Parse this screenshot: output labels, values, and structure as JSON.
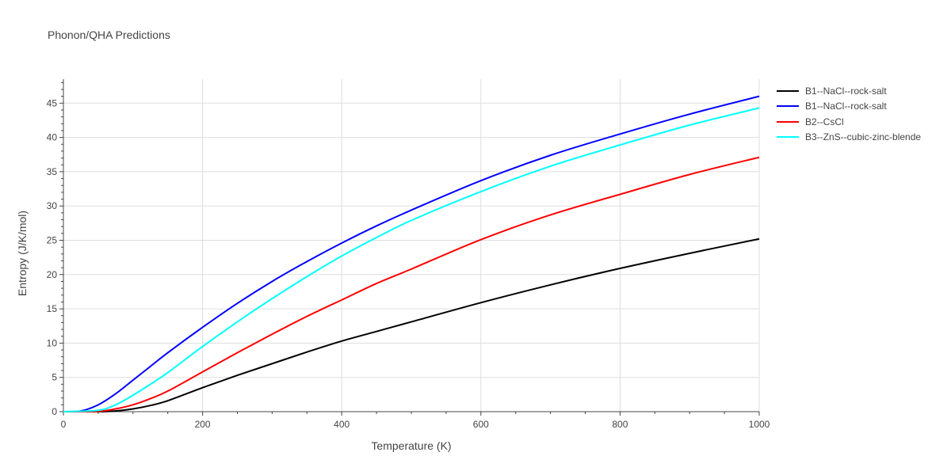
{
  "chart_data": {
    "type": "line",
    "title": "Phonon/QHA Predictions",
    "xlabel": "Temperature (K)",
    "ylabel": "Entropy (J/K/mol)",
    "xlim": [
      0,
      1000
    ],
    "ylim": [
      0,
      48.5
    ],
    "xticks": [
      0,
      200,
      400,
      600,
      800,
      1000
    ],
    "yticks": [
      0,
      5,
      10,
      15,
      20,
      25,
      30,
      35,
      40,
      45
    ],
    "grid": true,
    "legend_position": "right",
    "series": [
      {
        "name": "B1--NaCl--rock-salt",
        "color": "#000000",
        "x": [
          0,
          50,
          75,
          100,
          125,
          150,
          200,
          250,
          300,
          350,
          400,
          450,
          500,
          600,
          700,
          800,
          900,
          1000
        ],
        "y": [
          0,
          0.0,
          0.1,
          0.4,
          0.9,
          1.6,
          3.5,
          5.3,
          7.0,
          8.7,
          10.3,
          11.7,
          13.1,
          15.9,
          18.5,
          20.9,
          23.1,
          25.2
        ]
      },
      {
        "name": "B1--NaCl--rock-salt",
        "color": "#0000ff",
        "x": [
          0,
          25,
          50,
          75,
          100,
          125,
          150,
          200,
          250,
          300,
          350,
          400,
          450,
          500,
          600,
          700,
          800,
          900,
          1000
        ],
        "y": [
          0,
          0.1,
          1.0,
          2.6,
          4.6,
          6.6,
          8.6,
          12.3,
          15.8,
          19.0,
          21.9,
          24.6,
          27.1,
          29.4,
          33.7,
          37.4,
          40.5,
          43.4,
          46.0
        ]
      },
      {
        "name": "B2--CsCl",
        "color": "#ff0000",
        "x": [
          0,
          50,
          75,
          100,
          125,
          150,
          200,
          250,
          300,
          350,
          400,
          450,
          500,
          600,
          700,
          800,
          900,
          1000
        ],
        "y": [
          0,
          0.05,
          0.4,
          1.0,
          1.9,
          3.0,
          5.8,
          8.6,
          11.3,
          13.9,
          16.3,
          18.7,
          20.8,
          25.1,
          28.7,
          31.7,
          34.6,
          37.1
        ]
      },
      {
        "name": "B3--ZnS--cubic-zinc-blende",
        "color": "#00ffff",
        "x": [
          0,
          50,
          75,
          100,
          125,
          150,
          200,
          250,
          300,
          350,
          400,
          450,
          500,
          600,
          700,
          800,
          900,
          1000
        ],
        "y": [
          0,
          0.2,
          1.0,
          2.4,
          4.0,
          5.7,
          9.5,
          13.1,
          16.5,
          19.7,
          22.7,
          25.4,
          27.9,
          32.1,
          35.8,
          38.9,
          41.8,
          44.3
        ]
      }
    ]
  }
}
